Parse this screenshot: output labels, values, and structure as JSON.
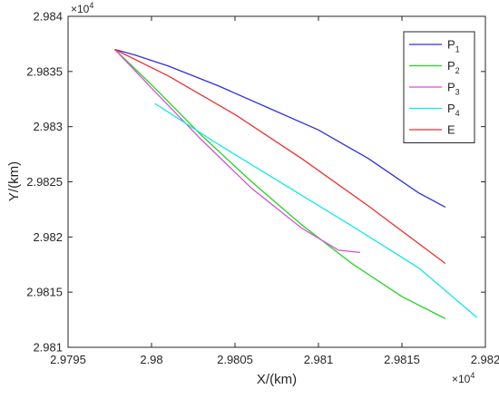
{
  "chart_data": {
    "type": "line",
    "xlabel": "X/(km)",
    "ylabel": "Y/(km)",
    "x_exponent": "×10",
    "x_exponent_power": "4",
    "y_exponent": "×10",
    "y_exponent_power": "4",
    "xlim": [
      2.9795,
      2.982
    ],
    "ylim": [
      2.981,
      2.984
    ],
    "x_ticks": [
      2.9795,
      2.98,
      2.9805,
      2.981,
      2.9815,
      2.982
    ],
    "x_tick_labels": [
      "2.9795",
      "2.98",
      "2.9805",
      "2.981",
      "2.9815",
      "2.982"
    ],
    "y_ticks": [
      2.981,
      2.9815,
      2.982,
      2.9825,
      2.983,
      2.9835,
      2.984
    ],
    "y_tick_labels": [
      "2.981",
      "2.9815",
      "2.982",
      "2.9825",
      "2.983",
      "2.9835",
      "2.984"
    ],
    "grid": false,
    "legend_position": "top-right",
    "series": [
      {
        "name": "P",
        "subscript": "1",
        "color": "#2f2fe0",
        "points": [
          [
            2.97978,
            2.9837
          ],
          [
            2.9799,
            2.98365
          ],
          [
            2.9801,
            2.98355
          ],
          [
            2.9804,
            2.98337
          ],
          [
            2.9807,
            2.98317
          ],
          [
            2.981,
            2.98297
          ],
          [
            2.9813,
            2.98271
          ],
          [
            2.9816,
            2.9824
          ],
          [
            2.98176,
            2.98227
          ]
        ]
      },
      {
        "name": "P",
        "subscript": "2",
        "color": "#1fd61f",
        "points": [
          [
            2.97978,
            2.9837
          ],
          [
            2.98,
            2.98338
          ],
          [
            2.9803,
            2.98292
          ],
          [
            2.9806,
            2.9825
          ],
          [
            2.9809,
            2.98211
          ],
          [
            2.9812,
            2.98176
          ],
          [
            2.9815,
            2.98146
          ],
          [
            2.98176,
            2.98126
          ]
        ]
      },
      {
        "name": "P",
        "subscript": "3",
        "color": "#d84fd8",
        "points": [
          [
            2.97978,
            2.9837
          ],
          [
            2.98,
            2.98335
          ],
          [
            2.9803,
            2.98288
          ],
          [
            2.9806,
            2.98244
          ],
          [
            2.9809,
            2.98208
          ],
          [
            2.98112,
            2.98188
          ],
          [
            2.98125,
            2.98186
          ]
        ]
      },
      {
        "name": "P",
        "subscript": "4",
        "color": "#10e8e8",
        "points": [
          [
            2.98002,
            2.98321
          ],
          [
            2.9804,
            2.98284
          ],
          [
            2.9808,
            2.98247
          ],
          [
            2.9812,
            2.9821
          ],
          [
            2.9816,
            2.98172
          ],
          [
            2.98195,
            2.98127
          ]
        ]
      },
      {
        "name": "E",
        "subscript": "",
        "color": "#ee3030",
        "points": [
          [
            2.97978,
            2.9837
          ],
          [
            2.9801,
            2.98346
          ],
          [
            2.9805,
            2.98311
          ],
          [
            2.9809,
            2.98271
          ],
          [
            2.9813,
            2.98228
          ],
          [
            2.98176,
            2.98176
          ]
        ]
      }
    ]
  }
}
